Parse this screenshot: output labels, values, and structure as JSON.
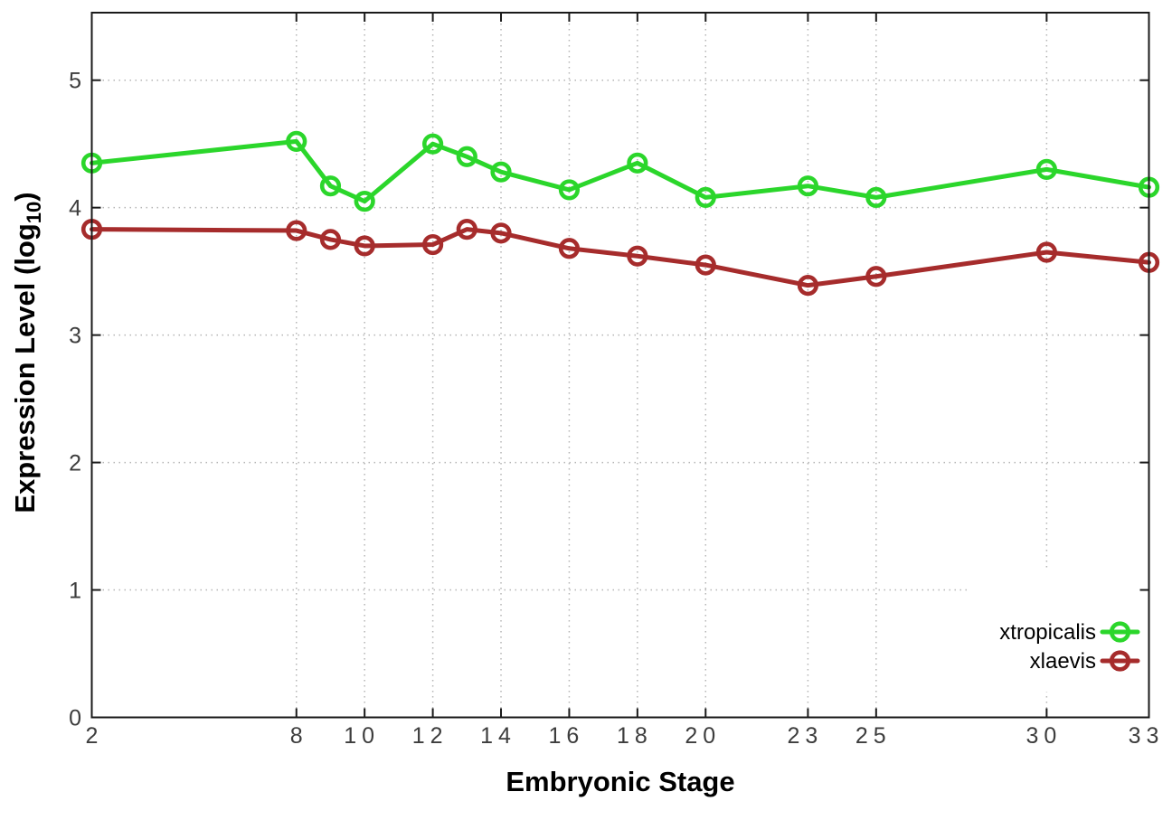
{
  "chart_data": {
    "type": "line",
    "title": "",
    "xlabel": "Embryonic Stage",
    "ylabel": "Expression Level (log10)",
    "ylabel_parts": {
      "pre": "Expression Level (log",
      "sub": "10",
      "post": ")"
    },
    "x": [
      2,
      8,
      9,
      10,
      12,
      13,
      14,
      16,
      18,
      20,
      23,
      25,
      30,
      33
    ],
    "x_ticks": [
      2,
      8,
      10,
      12,
      14,
      16,
      18,
      20,
      23,
      25,
      30,
      33
    ],
    "x_tick_labels": [
      "2",
      "8",
      "10",
      "12",
      "14",
      "16",
      "18",
      "20",
      "23",
      "25",
      "30",
      "33"
    ],
    "y_ticks": [
      0,
      1,
      2,
      3,
      4,
      5
    ],
    "y_tick_labels": [
      "0",
      "1",
      "2",
      "3",
      "4",
      "5"
    ],
    "xlim": [
      2,
      33
    ],
    "ylim": [
      0,
      5.53
    ],
    "grid": true,
    "legend_position": "bottom-right",
    "series": [
      {
        "name": "xtropicalis",
        "color": "#2bd62b",
        "values": [
          4.35,
          4.52,
          4.17,
          4.05,
          4.5,
          4.4,
          4.28,
          4.14,
          4.35,
          4.08,
          4.17,
          4.08,
          4.3,
          4.16
        ]
      },
      {
        "name": "xlaevis",
        "color": "#a62c2c",
        "values": [
          3.83,
          3.82,
          3.75,
          3.7,
          3.71,
          3.83,
          3.8,
          3.68,
          3.62,
          3.55,
          3.39,
          3.46,
          3.65,
          3.57
        ]
      }
    ],
    "colors": {
      "grid": "#b5b5b5",
      "border": "#1a1a1a",
      "tick_text": "#3d3d3d",
      "key_box": "#ffffff"
    }
  }
}
